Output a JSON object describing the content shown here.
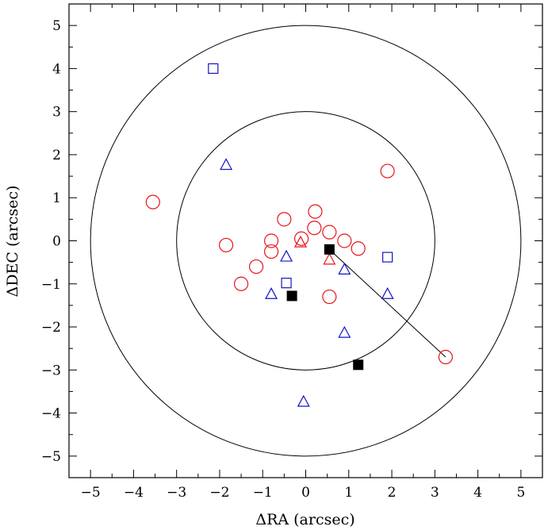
{
  "chart_data": {
    "type": "scatter",
    "title": "",
    "xlabel": "ΔRA (arcsec)",
    "ylabel": "ΔDEC (arcsec)",
    "xlim": [
      -5.5,
      5.5
    ],
    "ylim": [
      -5.5,
      5.5
    ],
    "x_ticks": [
      "−5",
      "−4",
      "−3",
      "−2",
      "−1",
      "0",
      "1",
      "2",
      "3",
      "4",
      "5"
    ],
    "y_ticks": [
      "−5",
      "−4",
      "−3",
      "−2",
      "−1",
      "0",
      "1",
      "2",
      "3",
      "4",
      "5"
    ],
    "grid": false,
    "colors": {
      "red": "#e8141c",
      "blue": "#1414c8",
      "black": "#000000"
    },
    "circles_radius": [
      3,
      5
    ],
    "connector_line": {
      "from": [
        0.55,
        -0.2
      ],
      "to": [
        3.25,
        -2.7
      ]
    },
    "series": [
      {
        "marker": "open-circle",
        "color": "red",
        "points": [
          [
            -3.55,
            0.9
          ],
          [
            -1.85,
            -0.1
          ],
          [
            -1.5,
            -1.0
          ],
          [
            -1.15,
            -0.6
          ],
          [
            -0.8,
            -0.25
          ],
          [
            -0.8,
            0.0
          ],
          [
            -0.5,
            0.5
          ],
          [
            -0.1,
            0.05
          ],
          [
            0.2,
            0.3
          ],
          [
            0.22,
            0.68
          ],
          [
            0.55,
            0.2
          ],
          [
            0.9,
            0.0
          ],
          [
            1.22,
            -0.18
          ],
          [
            0.55,
            -1.3
          ],
          [
            1.9,
            1.62
          ],
          [
            3.25,
            -2.7
          ]
        ]
      },
      {
        "marker": "open-triangle",
        "color": "red",
        "points": [
          [
            -0.12,
            -0.05
          ],
          [
            0.55,
            -0.45
          ]
        ]
      },
      {
        "marker": "open-triangle",
        "color": "blue",
        "points": [
          [
            -1.85,
            1.75
          ],
          [
            -0.45,
            -0.38
          ],
          [
            -0.8,
            -1.25
          ],
          [
            0.9,
            -0.68
          ],
          [
            1.9,
            -1.25
          ],
          [
            0.9,
            -2.15
          ],
          [
            -0.05,
            -3.75
          ]
        ]
      },
      {
        "marker": "open-square",
        "color": "blue",
        "points": [
          [
            -2.15,
            4.0
          ],
          [
            -0.45,
            -0.98
          ],
          [
            1.9,
            -0.38
          ]
        ]
      },
      {
        "marker": "filled-square",
        "color": "black",
        "points": [
          [
            0.55,
            -0.2
          ],
          [
            -0.32,
            -1.28
          ],
          [
            1.22,
            -2.88
          ]
        ]
      }
    ]
  }
}
